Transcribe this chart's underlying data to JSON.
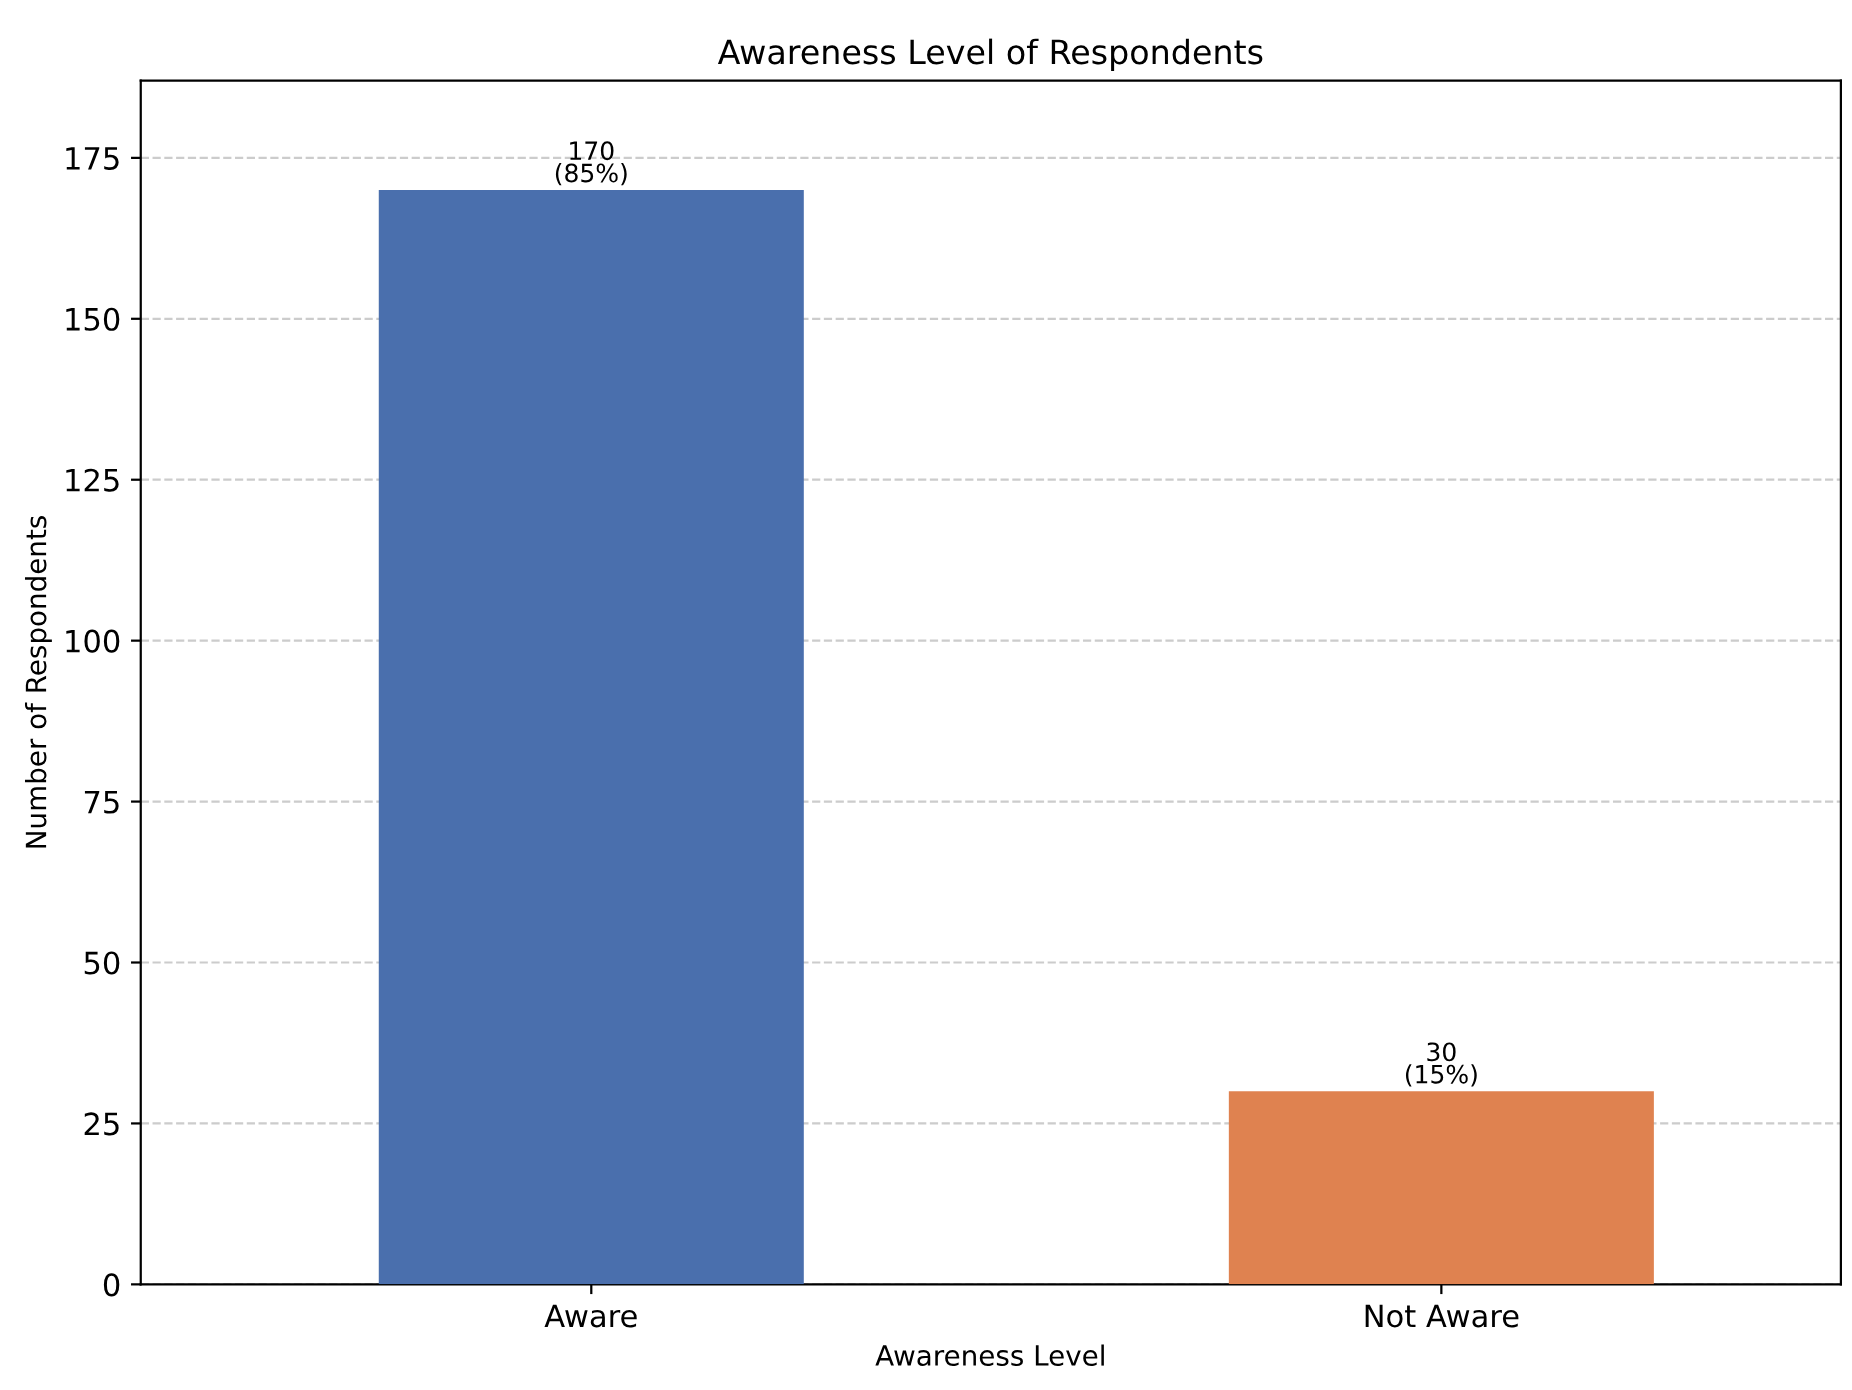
{
  "chart_data": {
    "type": "bar",
    "title": "Awareness Level of Respondents",
    "xlabel": "Awareness Level",
    "ylabel": "Number of Respondents",
    "categories": [
      "Aware",
      "Not Aware"
    ],
    "values": [
      170,
      30
    ],
    "colors": [
      "#4a6fad",
      "#df8250"
    ],
    "value_labels": [
      "170\n(85%)",
      "30\n(15%)"
    ],
    "ylim": [
      0,
      187
    ],
    "yticks": [
      0,
      25,
      50,
      75,
      100,
      125,
      150,
      175
    ],
    "grid": "y",
    "line_style": "dashed"
  }
}
